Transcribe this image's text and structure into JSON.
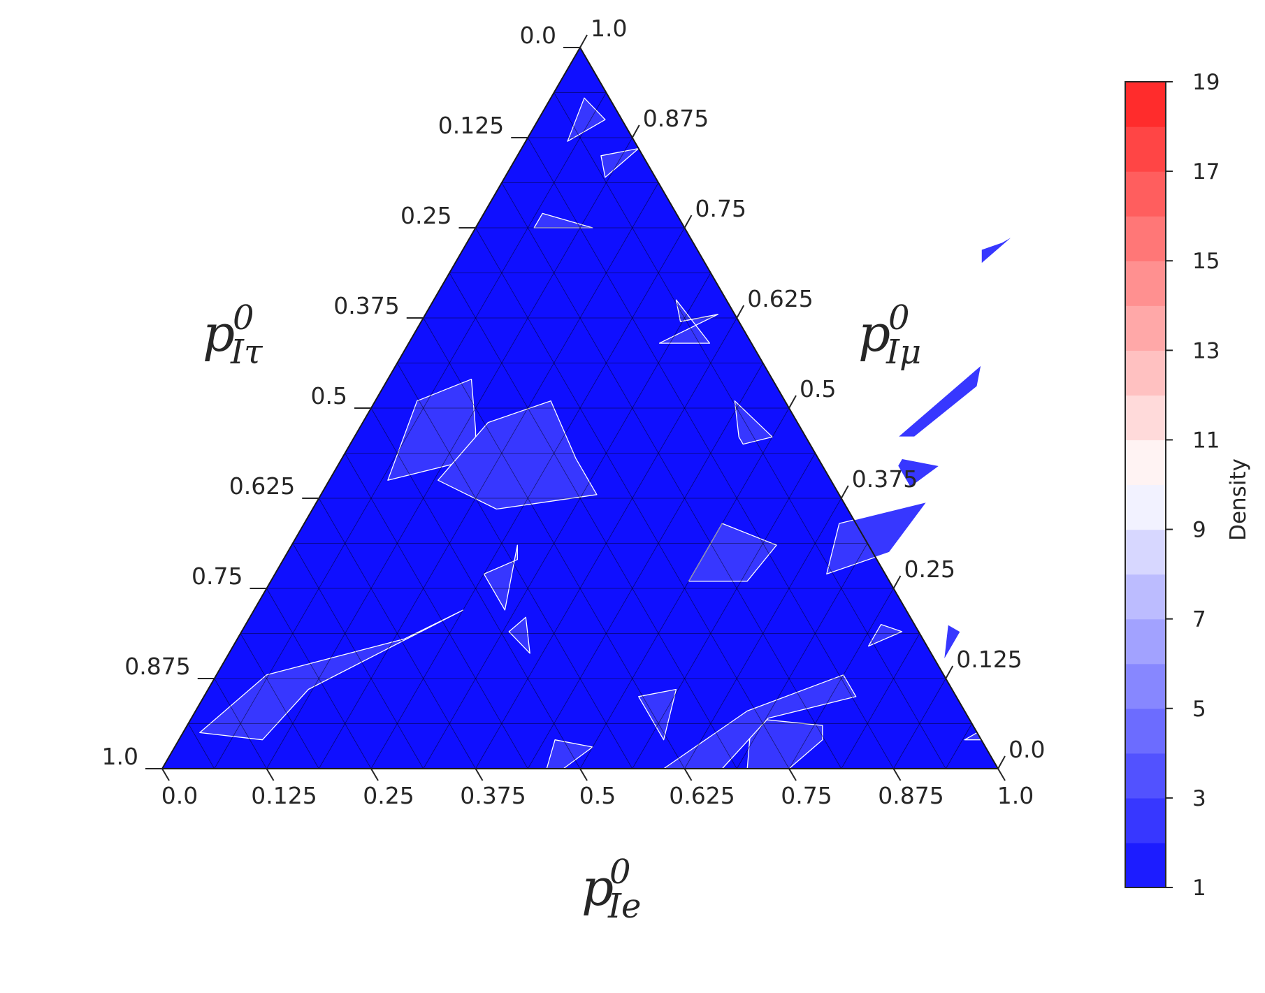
{
  "chart_data": {
    "type": "ternary-density-heatmap",
    "axes": {
      "bottom": {
        "label_base": "p",
        "label_sup": "0",
        "label_sub": "Ie",
        "ticks": [
          "0.0",
          "0.125",
          "0.25",
          "0.375",
          "0.5",
          "0.625",
          "0.75",
          "0.875",
          "1.0"
        ]
      },
      "right": {
        "label_base": "p",
        "label_sup": "0",
        "label_sub": "Iμ",
        "ticks": [
          "0.0",
          "0.125",
          "0.25",
          "0.375",
          "0.5",
          "0.625",
          "0.75",
          "0.875",
          "1.0"
        ]
      },
      "left": {
        "label_base": "p",
        "label_sup": "0",
        "label_sub": "Iτ",
        "ticks": [
          "0.0",
          "0.125",
          "0.25",
          "0.375",
          "0.5",
          "0.625",
          "0.75",
          "0.875",
          "1.0"
        ]
      }
    },
    "grid": true,
    "grid_divisions": 16,
    "colorbar": {
      "label": "Density",
      "range": [
        1,
        19
      ],
      "tick_labels": [
        "1",
        "3",
        "5",
        "7",
        "9",
        "11",
        "13",
        "15",
        "17",
        "19"
      ],
      "levels": 18,
      "colormap": "bwr",
      "low_color": "#0f0fff",
      "mid_color": "#ffffff",
      "high_color": "#ff2020"
    },
    "background_level": 1,
    "regions": [
      {
        "level": 2,
        "points": [
          [
            0.14,
            0.86
          ],
          [
            0.12,
            0.82
          ],
          [
            0.1,
            0.85
          ]
        ]
      },
      {
        "level": 2,
        "points": [
          [
            0.05,
            0.51
          ],
          [
            0.1,
            0.54
          ],
          [
            0.14,
            0.47
          ],
          [
            0.16,
            0.43
          ],
          [
            0.07,
            0.4
          ]
        ]
      },
      {
        "level": 2,
        "points": [
          [
            0.3,
            0.59
          ],
          [
            0.35,
            0.63
          ],
          [
            0.31,
            0.62
          ],
          [
            0.29,
            0.65
          ],
          [
            0.36,
            0.59
          ]
        ]
      },
      {
        "level": 2,
        "points": [
          [
            0.07,
            0.75
          ],
          [
            0.07,
            0.77
          ],
          [
            0.14,
            0.75
          ]
        ]
      },
      {
        "level": 2,
        "points": [
          [
            0.15,
            0.48
          ],
          [
            0.21,
            0.51
          ],
          [
            0.28,
            0.43
          ],
          [
            0.33,
            0.38
          ],
          [
            0.22,
            0.36
          ],
          [
            0.13,
            0.4
          ]
        ]
      },
      {
        "level": 2,
        "points": [
          [
            0.04,
            0.93
          ],
          [
            0.08,
            0.9
          ],
          [
            0.05,
            0.87
          ]
        ]
      },
      {
        "level": 2,
        "points": [
          [
            0.45,
            0.04
          ],
          [
            0.5,
            0.03
          ],
          [
            0.48,
            0.0
          ],
          [
            0.46,
            0.0
          ]
        ]
      },
      {
        "level": 2,
        "points": [
          [
            0.27,
            0.31
          ],
          [
            0.28,
            0.29
          ],
          [
            0.25,
            0.27
          ],
          [
            0.3,
            0.22
          ]
        ]
      },
      {
        "level": 2,
        "points": [
          [
            0.43,
            0.51
          ],
          [
            0.5,
            0.46
          ],
          [
            0.47,
            0.45
          ],
          [
            0.46,
            0.46
          ]
        ]
      },
      {
        "level": 2,
        "points": [
          [
            0.5,
            0.34
          ],
          [
            0.58,
            0.31
          ],
          [
            0.57,
            0.26
          ],
          [
            0.5,
            0.26
          ]
        ]
      },
      {
        "level": 2,
        "points": [
          [
            0.67,
            0.07
          ],
          [
            0.76,
            0.06
          ],
          [
            0.77,
            0.04
          ],
          [
            0.75,
            0.0
          ],
          [
            0.7,
            0.0
          ]
        ]
      },
      {
        "level": 2,
        "points": [
          [
            0.6,
            0.0
          ],
          [
            0.66,
            0.08
          ],
          [
            0.75,
            0.13
          ],
          [
            0.78,
            0.1
          ],
          [
            0.69,
            0.07
          ],
          [
            0.67,
            0.0
          ]
        ]
      },
      {
        "level": 2,
        "points": [
          [
            0.52,
            0.1
          ],
          [
            0.56,
            0.11
          ],
          [
            0.58,
            0.04
          ],
          [
            0.55,
            0.07
          ]
        ]
      },
      {
        "level": 2,
        "points": [
          [
            0.02,
            0.05
          ],
          [
            0.06,
            0.13
          ],
          [
            0.2,
            0.18
          ],
          [
            0.25,
            0.22
          ],
          [
            0.12,
            0.11
          ],
          [
            0.1,
            0.04
          ]
        ]
      },
      {
        "level": 2,
        "points": [
          [
            0.64,
            0.34
          ],
          [
            0.73,
            0.37
          ],
          [
            0.72,
            0.3
          ],
          [
            0.66,
            0.27
          ]
        ]
      },
      {
        "level": 2,
        "points": [
          [
            0.67,
            0.43
          ],
          [
            0.72,
            0.42
          ],
          [
            0.7,
            0.39
          ],
          [
            0.67,
            0.42
          ]
        ]
      },
      {
        "level": 2,
        "points": [
          [
            0.64,
            0.73
          ],
          [
            0.65,
            0.74
          ],
          [
            0.63,
            0.7
          ],
          [
            0.62,
            0.72
          ]
        ]
      },
      {
        "level": 2,
        "points": [
          [
            0.65,
            0.46
          ],
          [
            0.7,
            0.56
          ],
          [
            0.71,
            0.53
          ],
          [
            0.67,
            0.46
          ]
        ]
      },
      {
        "level": 2,
        "points": [
          [
            0.33,
            0.21
          ],
          [
            0.32,
            0.19
          ],
          [
            0.36,
            0.16
          ]
        ]
      },
      {
        "level": 2,
        "points": [
          [
            0.84,
            0.2
          ],
          [
            0.86,
            0.19
          ],
          [
            0.86,
            0.15
          ]
        ]
      },
      {
        "level": 2,
        "points": [
          [
            0.76,
            0.17
          ],
          [
            0.76,
            0.2
          ],
          [
            0.79,
            0.19
          ]
        ]
      },
      {
        "level": 2,
        "points": [
          [
            0.94,
            0.04
          ],
          [
            0.96,
            0.04
          ],
          [
            0.95,
            0.05
          ]
        ]
      }
    ]
  }
}
